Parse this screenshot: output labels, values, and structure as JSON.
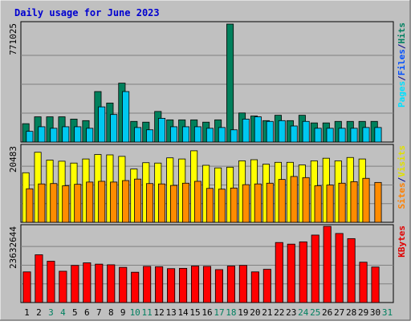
{
  "chart_data": {
    "type": "bar",
    "title": "Daily usage for June 2023",
    "categories": [
      "1",
      "2",
      "3",
      "4",
      "5",
      "6",
      "7",
      "8",
      "9",
      "10",
      "11",
      "12",
      "13",
      "14",
      "15",
      "16",
      "17",
      "18",
      "19",
      "20",
      "21",
      "22",
      "23",
      "24",
      "25",
      "26",
      "27",
      "28",
      "29",
      "30",
      "31"
    ],
    "weekend_categories": [
      "3",
      "4",
      "10",
      "11",
      "17",
      "18",
      "24",
      "25",
      "31"
    ],
    "panels": [
      {
        "id": "hits",
        "ytick": "771025",
        "ymax": 771025,
        "legend": [
          "Pages",
          "/",
          "Files",
          "/",
          "Hits"
        ],
        "legend_colors": [
          "#00e0ff",
          "#00008b",
          "#0050ff",
          "#00008b",
          "#008060"
        ],
        "series": [
          {
            "name": "Hits",
            "color": "#00805c",
            "values": [
              120000,
              165000,
              165000,
              165000,
              150000,
              140000,
              330000,
              255000,
              385000,
              135000,
              130000,
              200000,
              145000,
              145000,
              145000,
              130000,
              145000,
              771025,
              190000,
              170000,
              140000,
              175000,
              140000,
              175000,
              125000,
              125000,
              135000,
              135000,
              135000,
              135000,
              null
            ]
          },
          {
            "name": "Files",
            "color": "#00c8f0",
            "values": [
              70000,
              100000,
              90000,
              100000,
              100000,
              90000,
              230000,
              180000,
              330000,
              95000,
              80000,
              155000,
              100000,
              100000,
              100000,
              90000,
              95000,
              80000,
              150000,
              165000,
              135000,
              140000,
              105000,
              135000,
              90000,
              90000,
              90000,
              90000,
              95000,
              95000,
              null
            ]
          },
          {
            "name": "Pages",
            "color": "#00c8f0",
            "values": [
              null,
              null,
              null,
              null,
              null,
              null,
              null,
              null,
              null,
              null,
              null,
              null,
              null,
              null,
              null,
              null,
              null,
              null,
              null,
              null,
              null,
              null,
              null,
              null,
              null,
              null,
              null,
              null,
              null,
              null,
              null
            ]
          }
        ]
      },
      {
        "id": "visits",
        "ytick": "20483",
        "ymax": 20483,
        "legend": [
          "Sites",
          "/",
          "Visits"
        ],
        "legend_colors": [
          "#ff8000",
          "#00008b",
          "#e0e000"
        ],
        "series": [
          {
            "name": "Visits",
            "color": "#ffff00",
            "values": [
              13300,
              18800,
              16700,
              16400,
              15900,
              17000,
              18200,
              18100,
              17700,
              14300,
              16000,
              15900,
              17300,
              17000,
              19200,
              15300,
              14600,
              14800,
              16500,
              16800,
              15600,
              16100,
              16100,
              15400,
              16500,
              17200,
              16500,
              17400,
              17000,
              null,
              null
            ]
          },
          {
            "name": "Sites",
            "color": "#ff8c00",
            "values": [
              9000,
              10300,
              10400,
              9800,
              10200,
              10800,
              11000,
              10800,
              11200,
              11600,
              10400,
              10300,
              9900,
              10500,
              11000,
              9100,
              8900,
              9200,
              10100,
              10300,
              10500,
              11500,
              12300,
              12000,
              9800,
              10000,
              10500,
              10900,
              11800,
              10700,
              null
            ]
          }
        ]
      },
      {
        "id": "kbytes",
        "ytick": "23632644",
        "ymax": 23632644,
        "legend": [
          "KBytes"
        ],
        "legend_colors": [
          "#e00000"
        ],
        "series": [
          {
            "name": "KBytes",
            "color": "#ff0000",
            "values": [
              9500000,
              14800000,
              12800000,
              9700000,
              11500000,
              12300000,
              11900000,
              11700000,
              10900000,
              9400000,
              11200000,
              11100000,
              10500000,
              10600000,
              11300000,
              11200000,
              10200000,
              11300000,
              11500000,
              9500000,
              10300000,
              18600000,
              18100000,
              18800000,
              20900000,
              23600000,
              21400000,
              19800000,
              12500000,
              11000000,
              null
            ]
          }
        ]
      }
    ],
    "colors": {
      "frame": "#c0c0c0",
      "plot": "#c0c0c0",
      "gridline": "#808080",
      "title": "#0000d0",
      "axis_text": "#000000",
      "weekend_text": "#008060",
      "ytick_text": "#000000"
    },
    "grid": true,
    "legend_position": "right"
  }
}
